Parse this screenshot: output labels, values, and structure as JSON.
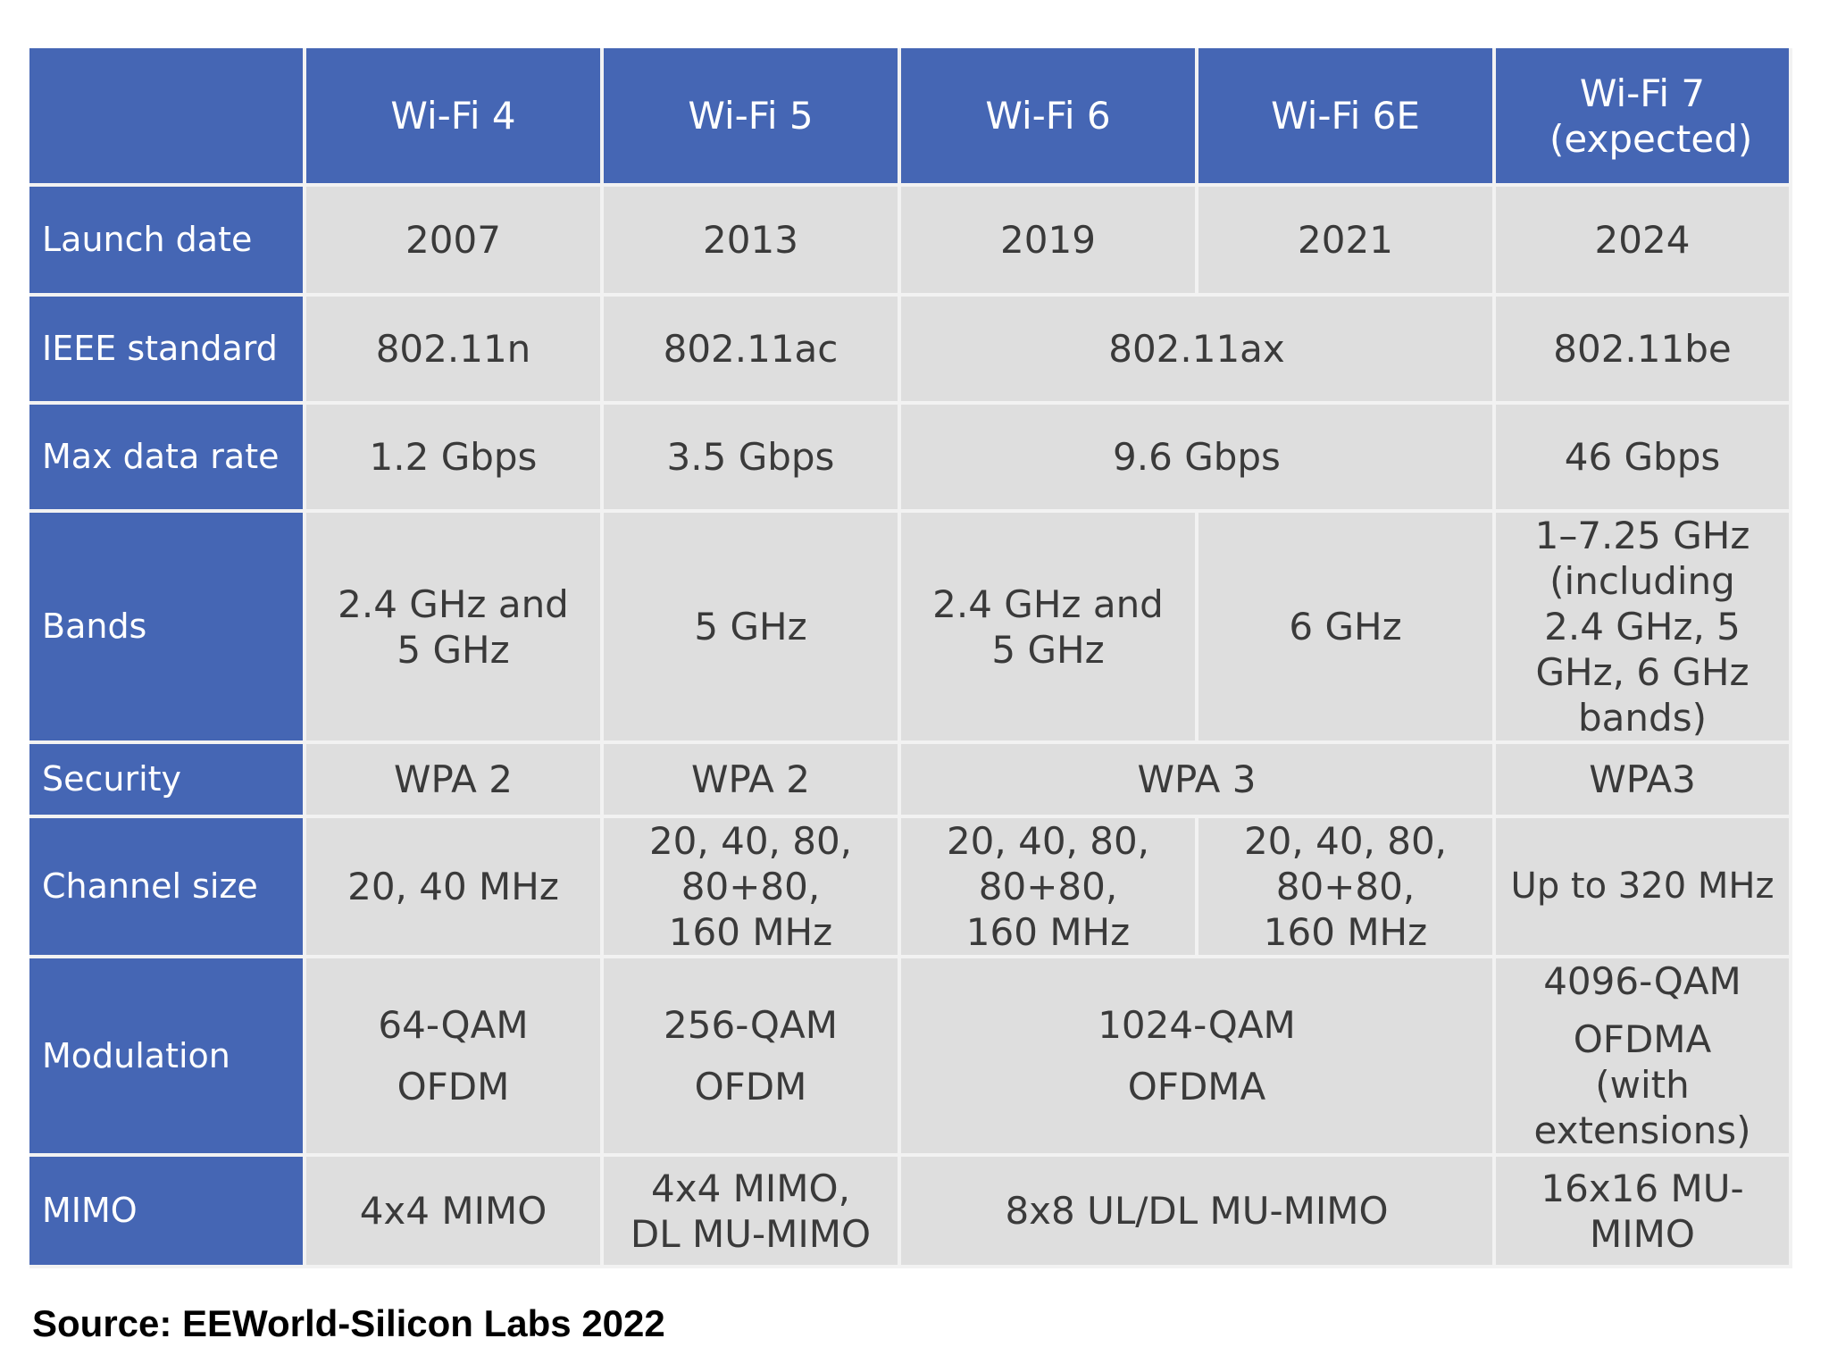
{
  "columns": [
    "Wi-Fi 4",
    "Wi-Fi 5",
    "Wi-Fi 6",
    "Wi-Fi 6E",
    "Wi-Fi 7 (expected)"
  ],
  "rows": {
    "launch_date": {
      "label": "Launch date",
      "wifi4": "2007",
      "wifi5": "2013",
      "wifi6": "2019",
      "wifi6e": "2021",
      "wifi7": "2024"
    },
    "ieee_standard": {
      "label": "IEEE standard",
      "wifi4": "802.11n",
      "wifi5": "802.11ac",
      "wifi6_6e": "802.11ax",
      "wifi7": "802.11be"
    },
    "max_data_rate": {
      "label": "Max data rate",
      "wifi4": "1.2 Gbps",
      "wifi5": "3.5 Gbps",
      "wifi6_6e": "9.6 Gbps",
      "wifi7": "46 Gbps"
    },
    "bands": {
      "label": "Bands",
      "wifi4": "2.4 GHz and 5 GHz",
      "wifi5": "5 GHz",
      "wifi6": "2.4 GHz and 5 GHz",
      "wifi6e": "6 GHz",
      "wifi7": "1–7.25 GHz (including 2.4 GHz, 5 GHz, 6 GHz bands)"
    },
    "security": {
      "label": "Security",
      "wifi4": "WPA 2",
      "wifi5": "WPA 2",
      "wifi6_6e": "WPA 3",
      "wifi7": "WPA3"
    },
    "channel_size": {
      "label": "Channel size",
      "wifi4": "20, 40 MHz",
      "wifi5": "20, 40, 80, 80+80, 160 MHz",
      "wifi6": "20, 40, 80, 80+80, 160 MHz",
      "wifi6e": "20, 40, 80, 80+80, 160 MHz",
      "wifi7": "Up to 320 MHz"
    },
    "modulation": {
      "label": "Modulation",
      "wifi4": {
        "qam": "64-QAM",
        "ofdm": "OFDM"
      },
      "wifi5": {
        "qam": "256-QAM",
        "ofdm": "OFDM"
      },
      "wifi6_6e": {
        "qam": "1024-QAM",
        "ofdm": "OFDMA"
      },
      "wifi7": {
        "qam": "4096-QAM",
        "ofdm": "OFDMA (with extensions)"
      }
    },
    "mimo": {
      "label": "MIMO",
      "wifi4": "4x4 MIMO",
      "wifi5": "4x4 MIMO, DL MU-MIMO",
      "wifi6_6e": "8x8 UL/DL MU-MIMO",
      "wifi7": "16x16 MU-MIMO"
    }
  },
  "source": "Source: EEWorld-Silicon Labs 2022"
}
